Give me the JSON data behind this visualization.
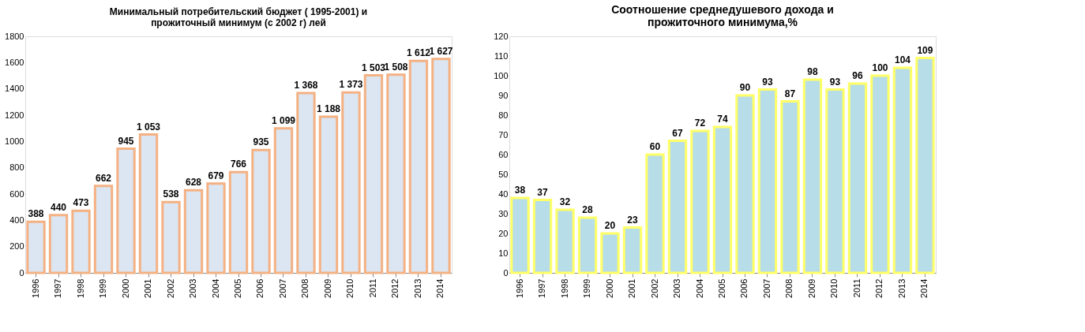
{
  "chart_data": [
    {
      "type": "bar",
      "title": "Минимальный потребительский бюджет ( 1995-2001) и\nпрожиточный минимум (с 2002 г) лей",
      "categories": [
        "1996",
        "1997",
        "1998",
        "1999",
        "2000",
        "2001",
        "2002",
        "2003",
        "2004",
        "2005",
        "2006",
        "2007",
        "2008",
        "2009",
        "2010",
        "2011",
        "2012",
        "2013",
        "2014"
      ],
      "series": [
        {
          "color": "#dce6f2",
          "values": [
            388,
            440,
            473,
            662,
            945,
            1053,
            538,
            628,
            679,
            766,
            935,
            1099,
            1368,
            1188,
            1373,
            1503,
            1508,
            1612,
            1627
          ],
          "value_labels": [
            "388",
            "440",
            "473",
            "662",
            "945",
            "1 053",
            "538",
            "628",
            "679",
            "766",
            "935",
            "1 099",
            "1 368",
            "1 188",
            "1 373",
            "1 503",
            "1 508",
            "1 612",
            "1 627"
          ]
        }
      ],
      "ylim": [
        0,
        1800
      ],
      "yticks": [
        0,
        200,
        400,
        600,
        800,
        1000,
        1200,
        1400,
        1600,
        1800
      ],
      "grid": false
    },
    {
      "type": "bar",
      "title": "Соотношение среднедушевого дохода и\nпрожиточного минимума,%",
      "categories": [
        "1996",
        "1997",
        "1998",
        "1999",
        "2000",
        "2001",
        "2002",
        "2003",
        "2004",
        "2005",
        "2006",
        "2007",
        "2008",
        "2009",
        "2010",
        "2011",
        "2012",
        "2013",
        "2014"
      ],
      "series": [
        {
          "color": "#b7dde8",
          "values": [
            38,
            37,
            32,
            28,
            20,
            23,
            60,
            67,
            72,
            74,
            90,
            93,
            87,
            98,
            93,
            96,
            100,
            104,
            109
          ]
        }
      ],
      "data_labels": true,
      "ylim": [
        0,
        120
      ],
      "yticks": [
        0,
        10,
        20,
        30,
        40,
        50,
        60,
        70,
        80,
        90,
        100,
        110,
        120
      ],
      "grid": false
    }
  ]
}
